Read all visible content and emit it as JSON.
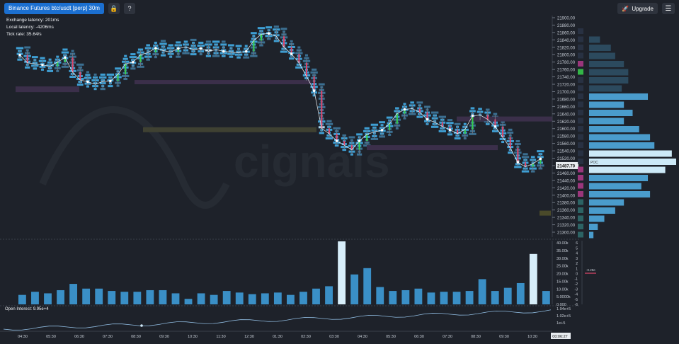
{
  "toolbar": {
    "title": "Binance Futures btc/usdt [perp] 30m",
    "lock_icon": "lock-icon",
    "help_icon": "help-icon",
    "upgrade_label": "Upgrade",
    "rocket_icon": "rocket-icon",
    "menu_icon": "hamburger-menu-icon"
  },
  "stats": {
    "exchange_latency": "Exchange latency: 201ms",
    "local_latency": "Local latency: -4206ms",
    "tick_rate": "Tick rate: 35.64/s"
  },
  "watermark": "cignals",
  "open_interest_label": "Open Interest: 9.95e+4",
  "colors": {
    "background": "#1e222a",
    "box_blue": "#3e9fd4",
    "box_light": "#a8d8f0",
    "up_candle": "#37d04c",
    "down_candle": "#e0456a",
    "vwap_line": "#ffffff",
    "volume_bar": "#3a8fc6",
    "volume_highlight": "#d7eefa",
    "profile_dark": "#2c4a5e",
    "profile_mid": "#4a9ccc",
    "profile_light": "#cce9f7",
    "accent_blue": "#1b6fd0"
  },
  "chart_data": [
    {
      "type": "candlestick",
      "title": "Binance Futures btc/usdt [perp] 30m",
      "x_tick_labels": [
        "04:30",
        "05:30",
        "06:30",
        "07:30",
        "08:30",
        "09:30",
        "10:30",
        "11:30",
        "12:30",
        "01:30",
        "02:30",
        "03:30",
        "04:30",
        "05:30",
        "06:30",
        "07:30",
        "08:30",
        "09:30",
        "10:30",
        "00:06:27"
      ],
      "y_tick_labels": [
        "21900.00",
        "21880.00",
        "21860.00",
        "21840.00",
        "21820.00",
        "21800.00",
        "21780.00",
        "21760.00",
        "21740.00",
        "21720.00",
        "21700.00",
        "21680.00",
        "21660.00",
        "21640.00",
        "21620.00",
        "21600.00",
        "21580.00",
        "21560.00",
        "21540.00",
        "21520.00",
        "21487.70",
        "21460.00",
        "21440.00",
        "21420.00",
        "21400.00",
        "21380.00",
        "21360.00",
        "21340.00",
        "21320.00",
        "21300.00"
      ],
      "ylim": [
        21295,
        21910
      ],
      "last_price": "21487.70",
      "poc_label": "POC",
      "close": [
        21800,
        21778,
        21775,
        21772,
        21768,
        21780,
        21793,
        21752,
        21730,
        21725,
        21718,
        21726,
        21727,
        21746,
        21775,
        21780,
        21800,
        21807,
        21819,
        21812,
        21808,
        21818,
        21822,
        21815,
        21818,
        21810,
        21815,
        21810,
        21808,
        21806,
        21810,
        21840,
        21858,
        21860,
        21852,
        21822,
        21803,
        21778,
        21740,
        21700,
        21595,
        21580,
        21560,
        21548,
        21535,
        21560,
        21578,
        21585,
        21590,
        21608,
        21636,
        21648,
        21650,
        21640,
        21620,
        21612,
        21600,
        21591,
        21580,
        21592,
        21630,
        21632,
        21620,
        21600,
        21570,
        21540,
        21500,
        21487.7,
        21496,
        21510
      ],
      "vwap": [
        21800,
        21794,
        21790,
        21786,
        21782,
        21782,
        21784,
        21778,
        21770,
        21762,
        21755,
        21752,
        21750,
        21750,
        21752,
        21754,
        21758,
        21762,
        21767,
        21771,
        21774,
        21777,
        21780,
        21782,
        21784,
        21785,
        21787,
        21788,
        21789,
        21790,
        21791,
        21793,
        21796,
        21799,
        21801,
        21802,
        21802,
        21801,
        21798,
        21793,
        21783,
        21773,
        21762,
        21752,
        21742,
        21735,
        21729,
        21723,
        21718,
        21714,
        21711,
        21709,
        21707,
        21705,
        21702,
        21700,
        21697,
        21694,
        21691,
        21688,
        21686,
        21685,
        21683,
        21681,
        21678,
        21674,
        21668,
        21662,
        21657,
        21653
      ]
    },
    {
      "type": "bar",
      "title": "",
      "ylabel_ticks": [
        "40.00k",
        "35.00k",
        "30.00k",
        "25.00k",
        "20.00k",
        "15.00k",
        "10.00k",
        "5.0000k",
        "0.000"
      ],
      "ylim": [
        0,
        40000
      ],
      "values": [
        6000,
        8000,
        7000,
        9000,
        13000,
        10000,
        10000,
        8500,
        8000,
        8000,
        9000,
        9000,
        7000,
        3500,
        7000,
        6000,
        8500,
        7500,
        6500,
        7000,
        7500,
        6000,
        8000,
        10000,
        11500,
        40000,
        19000,
        23000,
        11000,
        8500,
        9000,
        10000,
        7500,
        8000,
        8000,
        8500,
        16000,
        8500,
        10500,
        13500,
        32000,
        8500
      ],
      "highlight_index": [
        25,
        40
      ],
      "right_axis_ticks": [
        "6",
        "5",
        "4",
        "3",
        "2",
        "1",
        "0",
        "-1",
        "-2",
        "-3",
        "-4",
        "-5",
        "-6"
      ],
      "right_marker_label": "-0.29e"
    },
    {
      "type": "line",
      "title": "Open Interest: 9.95e+4",
      "y_tick_labels": [
        "1.94e+5",
        "1.02e+5",
        "1e+5"
      ]
    },
    {
      "type": "horizontal-bar",
      "title": "",
      "values": [
        0,
        5,
        10,
        12,
        16,
        18,
        18,
        15,
        27,
        16,
        20,
        16,
        23,
        28,
        30,
        38,
        40,
        35,
        27,
        24,
        28,
        16,
        12,
        7,
        4,
        2
      ],
      "highlight_indices": [
        15,
        16,
        17
      ]
    }
  ]
}
